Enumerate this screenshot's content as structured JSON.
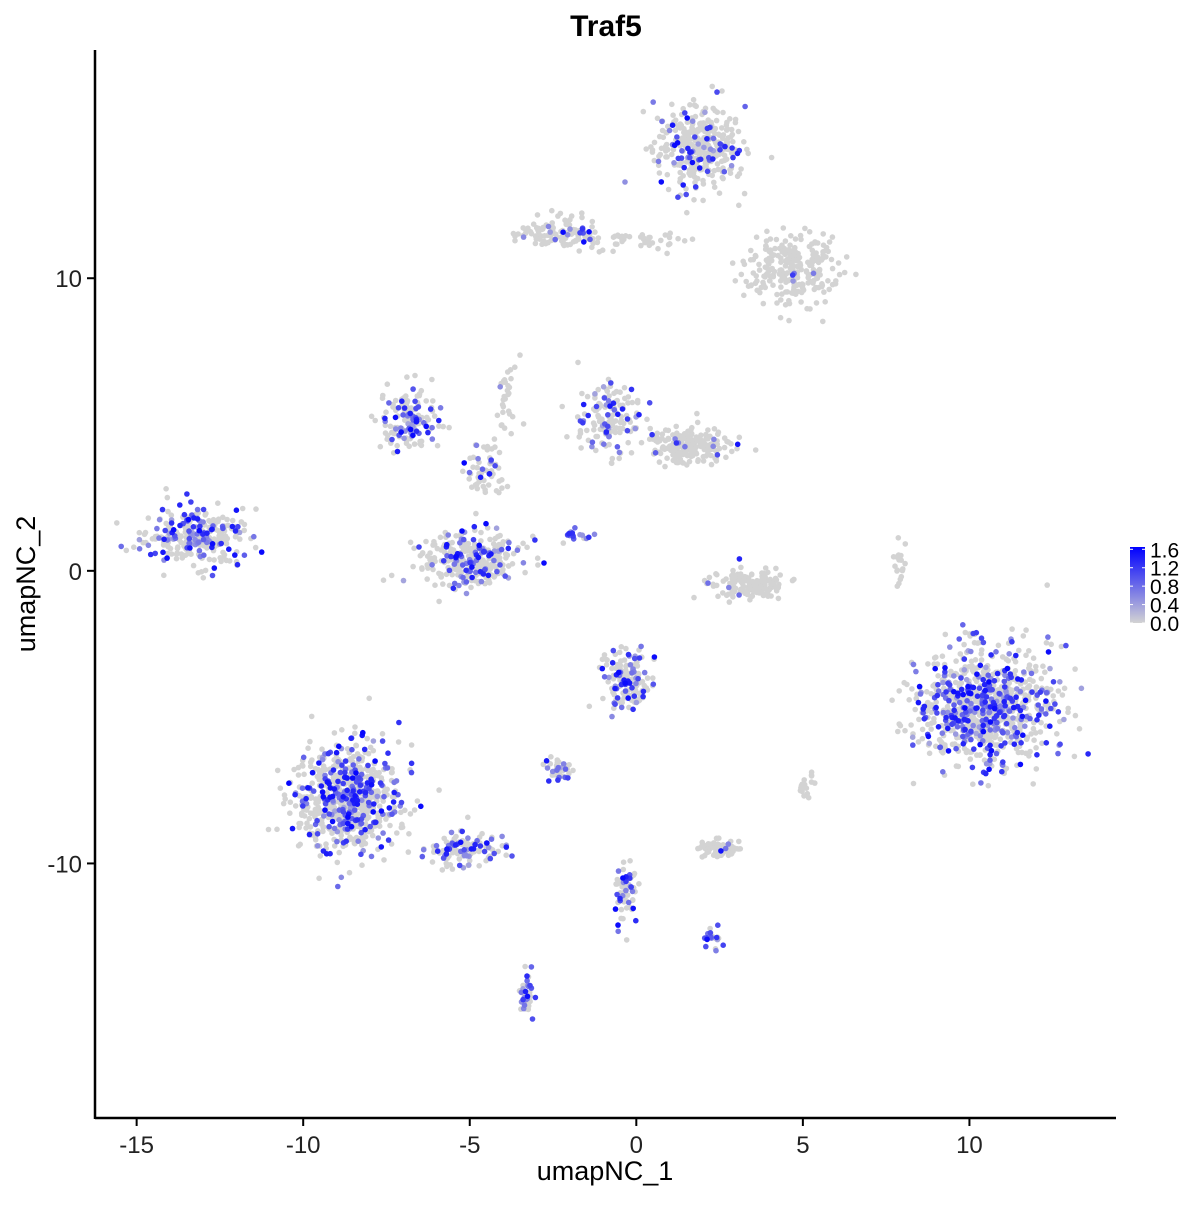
{
  "chart_data": {
    "type": "scatter",
    "title": "Traf5",
    "xlabel": "umapNC_1",
    "ylabel": "umapNC_2",
    "xlim": [
      -16.25,
      14.4
    ],
    "ylim": [
      -18.7,
      17.8
    ],
    "xticks": [
      -15,
      -10,
      -5,
      0,
      5,
      10
    ],
    "yticks": [
      -10,
      0,
      10
    ],
    "grid": false,
    "legend": {
      "placement": "right",
      "type": "colorbar",
      "ticks": [
        "1.6",
        "1.2",
        "0.8",
        "0.4",
        "0.0"
      ],
      "range": [
        0,
        1.65
      ]
    },
    "colors": {
      "low": "#D3D3D3",
      "high": "#0000FF"
    },
    "clusters": [
      {
        "x": 1.9,
        "y": 14.4,
        "sx": 1.1,
        "sy": 1.2,
        "n": 350,
        "expressing_fraction": 0.15
      },
      {
        "x": -2.3,
        "y": 11.5,
        "sx": 1.0,
        "sy": 0.5,
        "n": 120,
        "expressing_fraction": 0.08
      },
      {
        "x": 4.6,
        "y": 10.3,
        "sx": 1.2,
        "sy": 1.0,
        "n": 250,
        "expressing_fraction": 0.03
      },
      {
        "x": 0.1,
        "y": 11.3,
        "sx": 1.2,
        "sy": 0.3,
        "n": 40,
        "expressing_fraction": 0.05
      },
      {
        "x": -13.2,
        "y": 1.2,
        "sx": 1.2,
        "sy": 0.8,
        "n": 300,
        "expressing_fraction": 0.3
      },
      {
        "x": -5.0,
        "y": 0.4,
        "sx": 1.3,
        "sy": 0.8,
        "n": 300,
        "expressing_fraction": 0.25
      },
      {
        "x": -6.8,
        "y": 5.2,
        "sx": 0.8,
        "sy": 0.9,
        "n": 150,
        "expressing_fraction": 0.3
      },
      {
        "x": -4.5,
        "y": 3.4,
        "sx": 0.5,
        "sy": 0.8,
        "n": 60,
        "expressing_fraction": 0.2
      },
      {
        "x": -0.8,
        "y": 5.2,
        "sx": 0.8,
        "sy": 0.9,
        "n": 150,
        "expressing_fraction": 0.2
      },
      {
        "x": 1.6,
        "y": 4.3,
        "sx": 1.0,
        "sy": 0.5,
        "n": 200,
        "expressing_fraction": 0.05
      },
      {
        "x": 3.4,
        "y": -0.5,
        "sx": 0.9,
        "sy": 0.4,
        "n": 150,
        "expressing_fraction": 0.02
      },
      {
        "x": 10.5,
        "y": -4.6,
        "sx": 1.6,
        "sy": 1.6,
        "n": 900,
        "expressing_fraction": 0.35
      },
      {
        "x": -8.7,
        "y": -7.8,
        "sx": 1.3,
        "sy": 1.5,
        "n": 700,
        "expressing_fraction": 0.3
      },
      {
        "x": -5.3,
        "y": -9.5,
        "sx": 1.1,
        "sy": 0.5,
        "n": 120,
        "expressing_fraction": 0.4
      },
      {
        "x": -0.3,
        "y": -3.7,
        "sx": 0.6,
        "sy": 0.9,
        "n": 150,
        "expressing_fraction": 0.25
      },
      {
        "x": -2.3,
        "y": -6.8,
        "sx": 0.4,
        "sy": 0.3,
        "n": 40,
        "expressing_fraction": 0.4
      },
      {
        "x": 2.5,
        "y": -9.5,
        "sx": 0.5,
        "sy": 0.25,
        "n": 80,
        "expressing_fraction": 0.02
      },
      {
        "x": -0.3,
        "y": -10.9,
        "sx": 0.3,
        "sy": 1.0,
        "n": 60,
        "expressing_fraction": 0.3
      },
      {
        "x": 2.3,
        "y": -12.6,
        "sx": 0.3,
        "sy": 0.3,
        "n": 20,
        "expressing_fraction": 0.5
      },
      {
        "x": -3.3,
        "y": -14.5,
        "sx": 0.2,
        "sy": 0.6,
        "n": 40,
        "expressing_fraction": 0.5
      },
      {
        "x": 7.9,
        "y": 0.2,
        "sx": 0.15,
        "sy": 0.6,
        "n": 20,
        "expressing_fraction": 0.0
      },
      {
        "x": -1.8,
        "y": 1.2,
        "sx": 0.4,
        "sy": 0.2,
        "n": 15,
        "expressing_fraction": 0.8
      },
      {
        "x": -3.9,
        "y": 6.0,
        "sx": 0.3,
        "sy": 1.2,
        "n": 30,
        "expressing_fraction": 0.1
      },
      {
        "x": 5.1,
        "y": -7.3,
        "sx": 0.2,
        "sy": 0.3,
        "n": 20,
        "expressing_fraction": 0.1
      }
    ]
  }
}
